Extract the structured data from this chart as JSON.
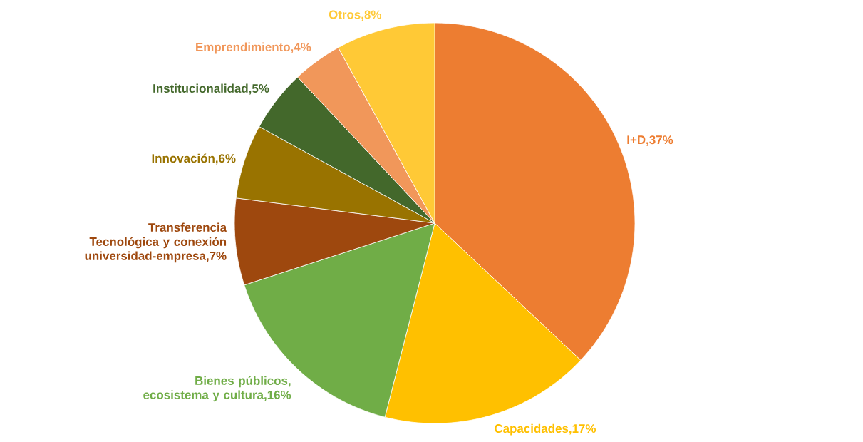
{
  "chart_data": {
    "type": "pie",
    "categories": [
      "I+D",
      "Capacidades",
      "Bienes públicos, ecosistema y cultura",
      "Transferencia Tecnológica y conexión universidad-empresa",
      "Innovación",
      "Institucionalidad",
      "Emprendimiento",
      "Otros"
    ],
    "values": [
      37,
      17,
      16,
      7,
      6,
      5,
      4,
      8
    ],
    "colors": [
      "#ed7d31",
      "#ffc000",
      "#70ad47",
      "#9e480e",
      "#997300",
      "#43682b",
      "#f1975a",
      "#ffc936"
    ],
    "value_labels": [
      ",37%",
      ",17%",
      ",16%",
      ",7%",
      ",6%",
      ",5%",
      ",4%",
      ",8%"
    ]
  }
}
